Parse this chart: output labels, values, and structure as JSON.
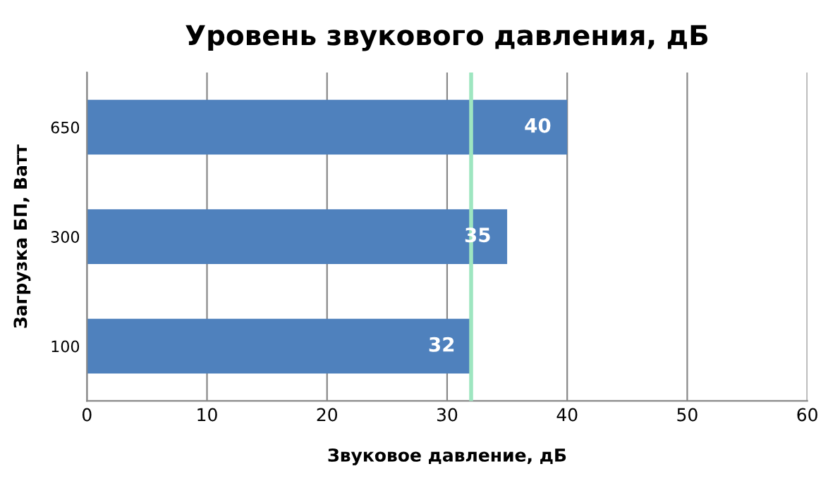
{
  "chart_data": {
    "type": "bar",
    "orientation": "horizontal",
    "title": "Уровень звукового давления, дБ",
    "xlabel": "Звуковое давление, дБ",
    "ylabel": "Загрузка БП, Ватт",
    "categories": [
      "650",
      "300",
      "100"
    ],
    "values": [
      40,
      35,
      32
    ],
    "color": "#4f81bd",
    "xlim": [
      0,
      60
    ],
    "xticks": [
      0,
      10,
      20,
      30,
      40,
      50,
      60
    ],
    "grid": "x",
    "data_labels": true,
    "ref_lines": [
      {
        "axis": "x",
        "value": 32,
        "label": null,
        "color": "#9ee6c0"
      }
    ]
  }
}
